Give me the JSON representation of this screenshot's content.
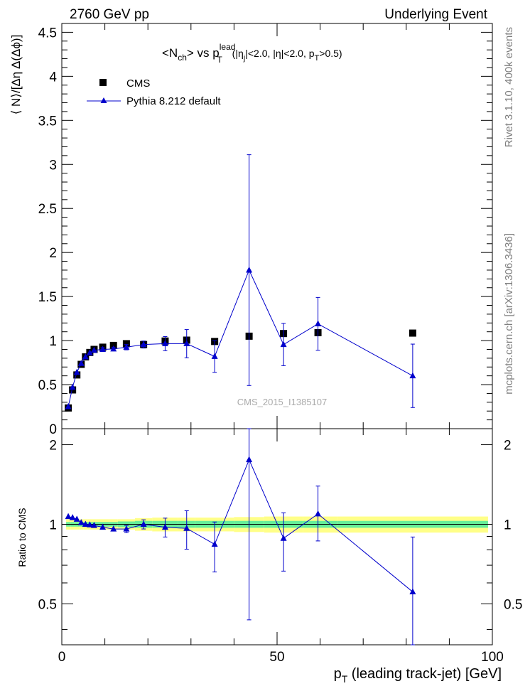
{
  "header": {
    "left": "2760 GeV pp",
    "right": "Underlying Event"
  },
  "side_labels": {
    "rivet": "Rivet 3.1.10,  400k events",
    "mcplots": "mcplots.cern.ch [arXiv:1306.3436]"
  },
  "watermark": "CMS_2015_I1385107",
  "chart_data": [
    {
      "type": "scatter",
      "title": {
        "main": "<N",
        "main_sub": "ch",
        "after_sub": "> vs p",
        "p_sup": "lead",
        "p_sub": "T",
        "cuts_a": " (|η",
        "cuts_a_sub": "j",
        "cuts_b": "|<2.0, |η|<2.0, p",
        "cuts_b_sub": "T",
        "cuts_c": ">0.5)"
      },
      "ylabel": "⟨ N⟩/[Δη Δ(Δϕ)]",
      "xlim": [
        0,
        100
      ],
      "ylim": [
        0,
        4.6
      ],
      "y_ticks": [
        0,
        0.5,
        1,
        1.5,
        2,
        2.5,
        3,
        3.5,
        4,
        4.5
      ],
      "y_tick_labels": [
        "0",
        "0.5",
        "1",
        "1.5",
        "2",
        "2.5",
        "3",
        "3.5",
        "4",
        "4.5"
      ],
      "legend_position": "top-left",
      "series": [
        {
          "name": "CMS",
          "marker": "square",
          "color": "#000000",
          "x": [
            1.5,
            2.5,
            3.5,
            4.5,
            5.5,
            6.5,
            7.5,
            9.5,
            12.0,
            15.0,
            19.0,
            24.0,
            29.0,
            35.5,
            43.5,
            51.5,
            59.5,
            81.5
          ],
          "y": [
            0.235,
            0.44,
            0.61,
            0.73,
            0.815,
            0.865,
            0.9,
            0.925,
            0.945,
            0.965,
            0.955,
            0.995,
            1.005,
            0.99,
            1.05,
            1.08,
            1.09,
            1.085
          ]
        },
        {
          "name": "Pythia 8.212 default",
          "marker": "triangle",
          "color": "#0000cc",
          "x": [
            1.5,
            2.5,
            3.5,
            4.5,
            5.5,
            6.5,
            7.5,
            9.5,
            12.0,
            15.0,
            19.0,
            24.0,
            29.0,
            35.5,
            43.5,
            51.5,
            59.5,
            81.5
          ],
          "y": [
            0.25,
            0.47,
            0.64,
            0.74,
            0.815,
            0.86,
            0.89,
            0.9,
            0.905,
            0.925,
            0.955,
            0.965,
            0.965,
            0.82,
            1.8,
            0.955,
            1.19,
            0.6
          ],
          "err": [
            0.01,
            0.01,
            0.01,
            0.01,
            0.01,
            0.01,
            0.01,
            0.02,
            0.02,
            0.03,
            0.04,
            0.08,
            0.16,
            0.18,
            1.31,
            0.24,
            0.3,
            0.36
          ]
        }
      ]
    },
    {
      "type": "scatter",
      "ylabel": "Ratio to CMS",
      "xlabel_main": "p",
      "xlabel_sub": "T",
      "xlabel_rest": " (leading track-jet) [GeV]",
      "xlim": [
        0,
        100
      ],
      "ylim": [
        0.35,
        2.3
      ],
      "x_ticks": [
        0,
        50,
        100
      ],
      "x_tick_labels": [
        "0",
        "50",
        "100"
      ],
      "y_ticks": [
        0.5,
        1,
        2
      ],
      "y_tick_labels": [
        "0.5",
        "1",
        "2"
      ],
      "bands": {
        "x_edges": [
          1,
          2,
          3,
          4,
          5,
          6,
          7,
          8,
          11,
          13,
          17,
          21,
          27,
          31,
          40,
          47,
          56,
          64,
          99
        ],
        "stat_half_width": [
          0.02,
          0.02,
          0.02,
          0.02,
          0.02,
          0.02,
          0.02,
          0.02,
          0.02,
          0.025,
          0.03,
          0.03,
          0.03,
          0.03,
          0.03,
          0.03,
          0.03,
          0.03
        ],
        "total_half_width": [
          0.045,
          0.045,
          0.045,
          0.045,
          0.045,
          0.045,
          0.045,
          0.045,
          0.045,
          0.045,
          0.055,
          0.06,
          0.06,
          0.06,
          0.065,
          0.07,
          0.07,
          0.07
        ],
        "stat_color": "#66ee99",
        "total_color": "#ffff88"
      },
      "series": [
        {
          "name": "Pythia 8.212 default",
          "marker": "triangle",
          "color": "#0000cc",
          "x": [
            1.5,
            2.5,
            3.5,
            4.5,
            5.5,
            6.5,
            7.5,
            9.5,
            12.0,
            15.0,
            19.0,
            24.0,
            29.0,
            35.5,
            43.5,
            51.5,
            59.5,
            81.5
          ],
          "y": [
            1.07,
            1.06,
            1.045,
            1.015,
            1.0,
            0.995,
            0.99,
            0.975,
            0.96,
            0.96,
            1.0,
            0.975,
            0.965,
            0.84,
            1.755,
            0.885,
            1.095,
            0.555
          ],
          "err_lo": [
            0.005,
            0.005,
            0.005,
            0.005,
            0.005,
            0.005,
            0.005,
            0.01,
            0.01,
            0.03,
            0.04,
            0.08,
            0.16,
            0.18,
            1.32,
            0.22,
            0.23,
            0.34
          ],
          "err_hi": [
            0.005,
            0.005,
            0.005,
            0.005,
            0.005,
            0.005,
            0.005,
            0.01,
            0.01,
            0.03,
            0.04,
            0.08,
            0.16,
            0.18,
            0.55,
            0.22,
            0.3,
            0.34
          ]
        }
      ]
    }
  ]
}
